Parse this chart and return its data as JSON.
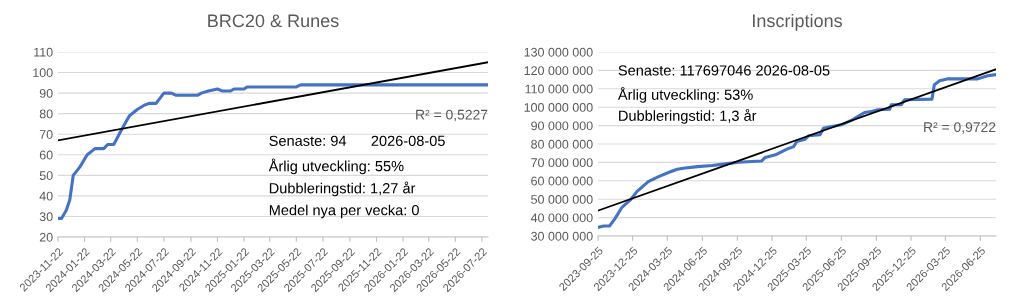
{
  "chart_data": [
    {
      "type": "line",
      "title": "BRC20 & Runes",
      "grid": "y",
      "xlim": [
        "2023-11-22",
        "2026-08-05"
      ],
      "xticks": [
        "2023-11-22",
        "2024-01-22",
        "2024-03-22",
        "2024-05-22",
        "2024-07-22",
        "2024-09-22",
        "2024-11-22",
        "2025-01-22",
        "2025-03-22",
        "2025-05-22",
        "2025-07-22",
        "2025-09-22",
        "2025-11-22",
        "2026-01-22",
        "2026-03-22",
        "2026-05-22",
        "2026-07-22"
      ],
      "ylim": [
        20,
        110
      ],
      "yticks": [
        20,
        30,
        40,
        50,
        60,
        70,
        80,
        90,
        100,
        110
      ],
      "series": [
        {
          "color": "#4472c4",
          "x": [
            "2023-11-22",
            "2023-11-30",
            "2023-12-11",
            "2023-12-19",
            "2023-12-27",
            "2024-01-11",
            "2024-01-28",
            "2024-02-15",
            "2024-03-06",
            "2024-03-15",
            "2024-03-29",
            "2024-04-18",
            "2024-05-04",
            "2024-05-22",
            "2024-06-06",
            "2024-06-18",
            "2024-07-04",
            "2024-07-22",
            "2024-08-08",
            "2024-08-18",
            "2024-10-08",
            "2024-10-16",
            "2024-11-01",
            "2024-11-22",
            "2024-12-04",
            "2024-12-22",
            "2024-12-30",
            "2025-01-22",
            "2025-01-29",
            "2025-05-22",
            "2025-06-01",
            "2026-08-05"
          ],
          "values": [
            29,
            29,
            33,
            38,
            50,
            54,
            60,
            63,
            63,
            65,
            65,
            73,
            79,
            82,
            84,
            85,
            85,
            90,
            90,
            89,
            89,
            90,
            91,
            92,
            91,
            91,
            92,
            92,
            93,
            93,
            94,
            94
          ]
        },
        {
          "color": "#000000",
          "x": [
            "2023-11-22",
            "2026-08-05"
          ],
          "values": [
            67,
            105
          ]
        }
      ],
      "annotations": [
        "Senaste: 94      2026-08-05",
        "Årlig utveckling: 55%",
        "Dubbleringstid: 1,27 år",
        "Medel nya per vecka: 0",
        "R² = 0,5227"
      ]
    },
    {
      "type": "line",
      "title": "Inscriptions",
      "grid": "y",
      "xlim": [
        "2023-09-25",
        "2026-08-05"
      ],
      "xticks": [
        "2023-09-25",
        "2023-12-25",
        "2024-03-25",
        "2024-06-25",
        "2024-09-25",
        "2024-12-25",
        "2025-03-25",
        "2025-06-25",
        "2025-09-25",
        "2025-12-25",
        "2026-03-25",
        "2026-06-25"
      ],
      "ylim": [
        30000000,
        130000000
      ],
      "yticks": [
        {
          "value": 30000000,
          "label": "30 000 000"
        },
        {
          "value": 40000000,
          "label": "40 000 000"
        },
        {
          "value": 50000000,
          "label": "50 000 000"
        },
        {
          "value": 60000000,
          "label": "60 000 000"
        },
        {
          "value": 70000000,
          "label": "70 000 000"
        },
        {
          "value": 80000000,
          "label": "80 000 000"
        },
        {
          "value": 90000000,
          "label": "90 000 000"
        },
        {
          "value": 100000000,
          "label": "100 000 000"
        },
        {
          "value": 110000000,
          "label": "110 000 000"
        },
        {
          "value": 120000000,
          "label": "120 000 000"
        },
        {
          "value": 130000000,
          "label": "130 000 000"
        }
      ],
      "series": [
        {
          "color": "#4472c4",
          "x": [
            "2023-09-25",
            "2023-10-10",
            "2023-10-25",
            "2023-11-09",
            "2023-11-27",
            "2023-12-19",
            "2024-01-05",
            "2024-02-04",
            "2024-03-02",
            "2024-03-28",
            "2024-04-20",
            "2024-05-11",
            "2024-06-12",
            "2024-07-21",
            "2024-08-25",
            "2024-09-28",
            "2024-11-02",
            "2024-11-28",
            "2024-12-07",
            "2025-01-03",
            "2025-01-20",
            "2025-02-02",
            "2025-02-20",
            "2025-02-28",
            "2025-03-22",
            "2025-03-31",
            "2025-04-30",
            "2025-05-09",
            "2025-05-31",
            "2025-06-25",
            "2025-07-21",
            "2025-08-08",
            "2025-08-25",
            "2025-09-12",
            "2025-09-29",
            "2025-10-30",
            "2025-11-03",
            "2025-11-29",
            "2025-12-08",
            "2026-02-18",
            "2026-02-24",
            "2026-03-10",
            "2026-04-01",
            "2026-06-18",
            "2026-07-14",
            "2026-08-05"
          ],
          "values": [
            34700000,
            35400000,
            35400000,
            39600000,
            45600000,
            49600000,
            54100000,
            59600000,
            62300000,
            64500000,
            66300000,
            66900000,
            67700000,
            68300000,
            69200000,
            70100000,
            70500000,
            70800000,
            72700000,
            74100000,
            75900000,
            77200000,
            78600000,
            81400000,
            82600000,
            84500000,
            85000000,
            88600000,
            89500000,
            90400000,
            92800000,
            95000000,
            97100000,
            97700000,
            98600000,
            98900000,
            101300000,
            101300000,
            104000000,
            104400000,
            112200000,
            114400000,
            115400000,
            115400000,
            117100000,
            117700000
          ]
        },
        {
          "color": "#000000",
          "x": [
            "2023-09-25",
            "2026-08-05"
          ],
          "values": [
            43800000,
            120600000
          ]
        }
      ],
      "annotations": [
        "Senaste: 117697046 2026-08-05",
        "Årlig utveckling: 53%",
        "Dubbleringstid: 1,3 år",
        "R² = 0,9722"
      ]
    }
  ]
}
